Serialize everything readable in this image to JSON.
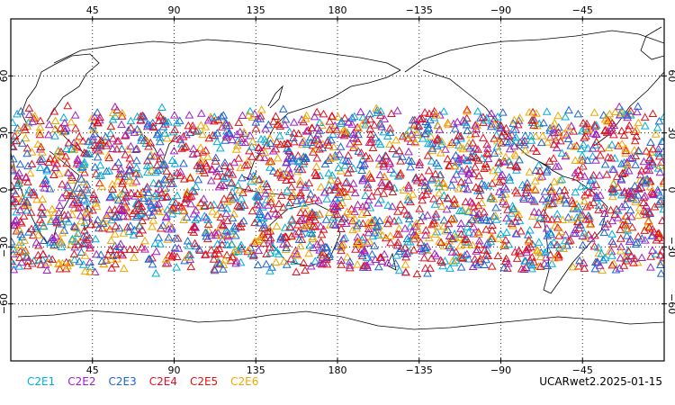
{
  "chart_data": {
    "type": "scatter",
    "projection": "cylindrical-equidistant",
    "lon_range": [
      0,
      360
    ],
    "lat_range": [
      -90,
      90
    ],
    "x_ticks_top": [
      "45",
      "90",
      "135",
      "180",
      "−135",
      "−90",
      "−45"
    ],
    "x_ticks_bottom": [
      "45",
      "90",
      "135",
      "180",
      "−135",
      "−90",
      "−45"
    ],
    "y_ticks_left": [
      "60",
      "30",
      "0",
      "−30",
      "−60"
    ],
    "y_ticks_right": [
      "60",
      "30",
      "0",
      "−30",
      "−60"
    ],
    "y_tick_values": [
      60,
      30,
      0,
      -30,
      -60
    ],
    "x_tick_values": [
      45,
      90,
      135,
      180,
      225,
      270,
      315
    ],
    "grid": "dotted",
    "marker": "open-triangle",
    "coverage_lat_range": [
      -45,
      45
    ],
    "series": [
      {
        "name": "C2E1",
        "color": "#00aedc"
      },
      {
        "name": "C2E2",
        "color": "#a020c8"
      },
      {
        "name": "C2E3",
        "color": "#1e64d2"
      },
      {
        "name": "C2E4",
        "color": "#e0102a"
      },
      {
        "name": "C2E5",
        "color": "#dc1410"
      },
      {
        "name": "C2E6",
        "color": "#f0a800"
      }
    ]
  },
  "legend_label": "UCARwet2.2025-01-15"
}
